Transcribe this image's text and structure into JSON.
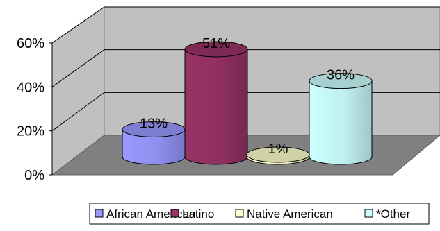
{
  "chart_data": {
    "type": "bar",
    "style": "3d-cylinder",
    "categories": [
      "African American",
      "Latino",
      "Native American",
      "*Other"
    ],
    "values": [
      13,
      51,
      1,
      36
    ],
    "data_labels": [
      "13%",
      "51%",
      "1%",
      "36%"
    ],
    "colors": [
      "#9999FF",
      "#993366",
      "#FFFFCC",
      "#CCFFFF"
    ],
    "yticks": [
      "0%",
      "20%",
      "40%",
      "60%"
    ],
    "ylim": [
      0,
      60
    ],
    "grid": true,
    "legend_position": "bottom",
    "title": "",
    "xlabel": "",
    "ylabel": ""
  }
}
